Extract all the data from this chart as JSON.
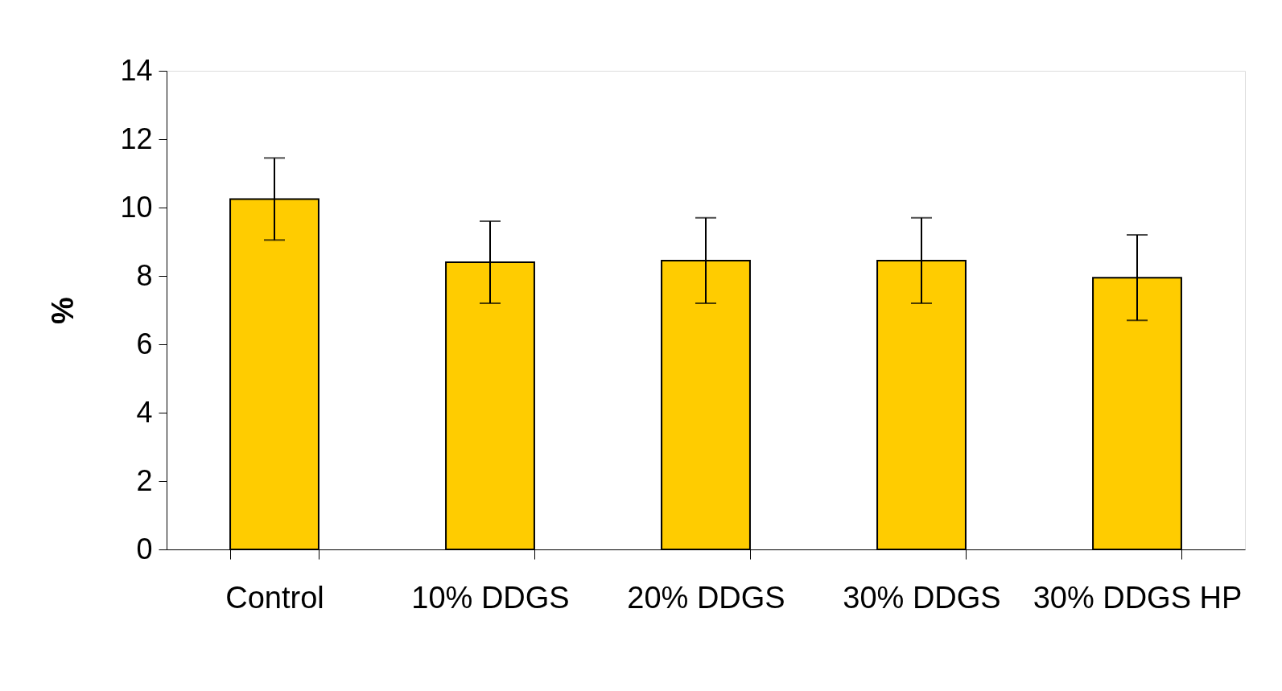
{
  "chart_data": {
    "type": "bar",
    "ylabel": "%",
    "categories": [
      "Control",
      "10% DDGS",
      "20% DDGS",
      "30% DDGS",
      "30% DDGS HP"
    ],
    "values": [
      10.25,
      8.4,
      8.45,
      8.45,
      7.95
    ],
    "errors": [
      1.2,
      1.2,
      1.25,
      1.25,
      1.25
    ],
    "color": "#ffcc00",
    "ylim": [
      0,
      14
    ],
    "yticks": [
      0,
      2,
      4,
      6,
      8,
      10,
      12,
      14
    ],
    "grid": false
  }
}
